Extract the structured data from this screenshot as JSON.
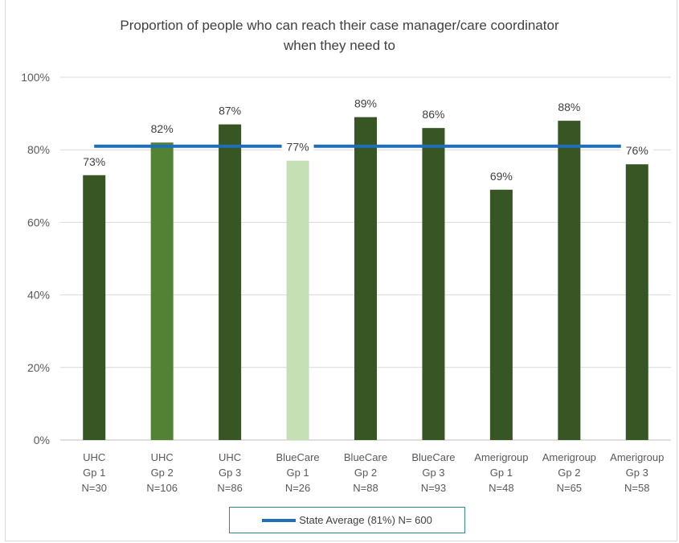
{
  "chart_data": {
    "type": "bar",
    "title_line1": "Proportion of people who can reach their case manager/care coordinator",
    "title_line2": "when they need to",
    "categories": [
      [
        "UHC",
        "Gp 1",
        "N=30"
      ],
      [
        "UHC",
        "Gp 2",
        "N=106"
      ],
      [
        "UHC",
        "Gp 3",
        "N=86"
      ],
      [
        "BlueCare",
        "Gp 1",
        "N=26"
      ],
      [
        "BlueCare",
        "Gp 2",
        "N=88"
      ],
      [
        "BlueCare",
        "Gp 3",
        "N=93"
      ],
      [
        "Amerigroup",
        "Gp 1",
        "N=48"
      ],
      [
        "Amerigroup",
        "Gp 2",
        "N=65"
      ],
      [
        "Amerigroup",
        "Gp 3",
        "N=58"
      ]
    ],
    "values": [
      73,
      82,
      87,
      77,
      89,
      86,
      69,
      88,
      76
    ],
    "value_labels": [
      "73%",
      "82%",
      "87%",
      "77%",
      "89%",
      "86%",
      "69%",
      "88%",
      "76%"
    ],
    "bar_colors": [
      "#375623",
      "#548235",
      "#375623",
      "#c5e0b4",
      "#375623",
      "#375623",
      "#375623",
      "#375623",
      "#375623"
    ],
    "yticks": [
      "0%",
      "20%",
      "40%",
      "60%",
      "80%",
      "100%"
    ],
    "ylim": [
      0,
      100
    ],
    "reference_line": {
      "name": "State Average (81%) N= 600",
      "value": 81,
      "color": "#1f6fb8"
    },
    "grid": true,
    "legend_position": "bottom"
  }
}
